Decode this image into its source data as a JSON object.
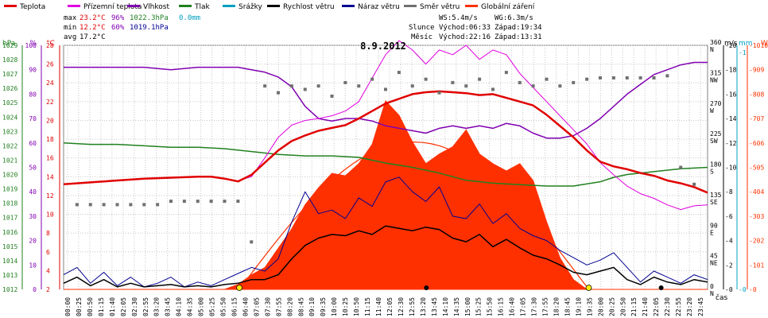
{
  "chart_data": {
    "type": "line",
    "title": "8.9.2012",
    "xlabel": "čas",
    "legend": [
      "Teplota",
      "Přízemní teplota",
      "Vlhkost",
      "Tlak",
      "Srážky",
      "Rychlost větru",
      "Náraz větru",
      "Směr větru",
      "Globální záření"
    ],
    "colors": {
      "temp": "#e00000",
      "ground": "#e000e0",
      "hum": "#8000b0",
      "press": "#208020",
      "rain": "#00a0c0",
      "wind": "#000000",
      "gust": "#000090",
      "dir": "#707070",
      "rad": "#ff3000"
    },
    "stats": {
      "max": {
        "label": "max",
        "temp": "23.2°C",
        "hum": "96%",
        "press": "1022.3hPa",
        "rain": "0.0mm"
      },
      "min": {
        "label": "min",
        "temp": "12.2°C",
        "hum": "60%",
        "press": "1019.1hPa"
      },
      "avg": {
        "label": "avg",
        "temp": "17.2°C"
      }
    },
    "wind_info": {
      "ws": "WS:5.4m/s",
      "wg": "WG:6.3m/s"
    },
    "sun": {
      "label": "Slunce",
      "rise": "Východ:06:33",
      "set": "Západ:19:34"
    },
    "moon": {
      "label": "Měsíc",
      "rise": "Východ:22:16",
      "set": "Západ:13:31"
    },
    "axes": {
      "hpa": {
        "title": "hPa",
        "ticks": [
          "1012",
          "1013",
          "1014",
          "1015",
          "1016",
          "1017",
          "1018",
          "1019",
          "1020",
          "1021",
          "1022",
          "1023",
          "1024",
          "1025",
          "1026",
          "1027",
          "1028",
          "1029"
        ]
      },
      "pct": {
        "title": "%",
        "ticks": [
          "0",
          "10",
          "20",
          "30",
          "40",
          "50",
          "60",
          "70",
          "80",
          "90",
          "100"
        ]
      },
      "degc": {
        "title": "°C",
        "ticks": [
          "2",
          "4",
          "6",
          "8",
          "10",
          "12",
          "14",
          "16",
          "18",
          "20",
          "22",
          "24",
          "26",
          "28"
        ]
      },
      "ms": {
        "title": "m/s",
        "ticks": [
          "0",
          "2",
          "4",
          "6",
          "8",
          "10",
          "12",
          "14",
          "16",
          "18",
          "20"
        ]
      },
      "dir": {
        "ticks": [
          "0 N",
          "45 NE",
          "90 E",
          "135 SE",
          "180 S",
          "225 SW",
          "270 W",
          "315 NW",
          "360 N"
        ]
      },
      "mm": {
        "title": "mm",
        "ticks": [
          "0",
          "1"
        ]
      },
      "w": {
        "title": "W",
        "ticks": [
          "0",
          "101",
          "202",
          "303",
          "404",
          "505",
          "606",
          "707",
          "808",
          "909",
          "1010"
        ]
      }
    },
    "x_ticks": [
      "00:00",
      "00:25",
      "00:50",
      "01:15",
      "01:40",
      "02:05",
      "02:30",
      "02:55",
      "03:20",
      "03:45",
      "04:10",
      "04:35",
      "05:00",
      "05:25",
      "05:50",
      "06:15",
      "06:40",
      "07:05",
      "07:30",
      "07:55",
      "08:20",
      "08:45",
      "09:10",
      "09:35",
      "10:00",
      "10:25",
      "10:50",
      "11:15",
      "11:40",
      "12:05",
      "12:30",
      "12:55",
      "13:20",
      "13:45",
      "14:10",
      "14:35",
      "15:00",
      "15:25",
      "15:50",
      "16:15",
      "16:40",
      "17:05",
      "17:30",
      "17:55",
      "18:20",
      "18:45",
      "19:10",
      "19:35",
      "20:00",
      "20:25",
      "20:50",
      "21:15",
      "21:40",
      "22:05",
      "22:30",
      "22:55",
      "23:20",
      "23:45"
    ],
    "series": [
      {
        "name": "Teplota",
        "unit": "°C",
        "x": [
          0,
          1,
          2,
          3,
          4,
          5,
          5.5,
          6,
          6.5,
          7,
          7.5,
          8,
          8.5,
          9,
          9.5,
          10,
          10.5,
          11,
          11.5,
          12,
          12.5,
          13,
          13.5,
          14,
          14.5,
          15,
          15.5,
          16,
          16.5,
          17,
          17.5,
          18,
          18.5,
          19,
          19.5,
          20,
          20.5,
          21,
          21.5,
          22,
          22.5,
          23,
          23.5,
          24
        ],
        "y": [
          13.2,
          13.4,
          13.6,
          13.8,
          13.9,
          14.0,
          14.0,
          13.8,
          13.5,
          14.2,
          15.5,
          16.8,
          17.8,
          18.4,
          18.9,
          19.2,
          19.5,
          20.2,
          21.0,
          21.8,
          22.3,
          22.8,
          23.0,
          23.1,
          23.0,
          22.9,
          22.7,
          22.8,
          22.4,
          22.0,
          21.6,
          20.6,
          19.4,
          18.2,
          16.8,
          15.6,
          15.1,
          14.8,
          14.4,
          14.1,
          13.6,
          13.3,
          12.9,
          12.3
        ]
      },
      {
        "name": "Přízemní teplota",
        "unit": "°C",
        "x": [
          6.4,
          7,
          7.5,
          8,
          8.5,
          9,
          9.5,
          10,
          10.5,
          11,
          11.5,
          12,
          12.5,
          13,
          13.5,
          14,
          14.5,
          15,
          15.5,
          16,
          16.5,
          17,
          17.5,
          18,
          18.5,
          19,
          19.5,
          20,
          20.5,
          21,
          21.5,
          22,
          22.5,
          23,
          23.5,
          24
        ],
        "y": [
          13.5,
          14.0,
          16.0,
          18.2,
          19.5,
          20.0,
          20.2,
          20.5,
          21.0,
          22.0,
          24.5,
          27.0,
          28.5,
          27.5,
          26.0,
          27.5,
          27.0,
          28.0,
          26.5,
          27.5,
          27.0,
          25.0,
          23.5,
          22.0,
          20.5,
          19.0,
          17.5,
          15.5,
          14.2,
          13.0,
          12.2,
          11.7,
          11.0,
          10.5,
          10.9,
          11.0
        ]
      },
      {
        "name": "Vlhkost",
        "unit": "%",
        "x": [
          0,
          1,
          2,
          3,
          4,
          5,
          6,
          6.5,
          7,
          7.5,
          8,
          8.5,
          9,
          9.5,
          10,
          10.5,
          11,
          11.5,
          12,
          12.5,
          13,
          13.5,
          14,
          14.5,
          15,
          15.5,
          16,
          16.5,
          17,
          17.5,
          18,
          18.5,
          19,
          19.5,
          20,
          20.5,
          21,
          21.5,
          22,
          22.5,
          23,
          23.5,
          24
        ],
        "y": [
          91,
          91,
          91,
          91,
          90,
          91,
          91,
          91,
          90,
          89,
          87,
          83,
          75,
          70,
          69,
          70,
          70,
          69,
          67,
          66,
          65,
          64,
          66,
          67,
          66,
          67,
          66,
          68,
          67,
          64,
          62,
          62,
          63,
          66,
          70,
          75,
          80,
          84,
          88,
          90,
          92,
          93,
          93
        ]
      },
      {
        "name": "Tlak",
        "unit": "hPa",
        "x": [
          0,
          1,
          2,
          3,
          4,
          5,
          6,
          7,
          8,
          9,
          10,
          11,
          12,
          13,
          14,
          15,
          16,
          17,
          18,
          19,
          20,
          20.5,
          21,
          22,
          23,
          24
        ],
        "y": [
          1022.2,
          1022.1,
          1022.1,
          1022.0,
          1021.9,
          1021.9,
          1021.8,
          1021.6,
          1021.4,
          1021.3,
          1021.3,
          1021.2,
          1020.8,
          1020.5,
          1020.1,
          1019.6,
          1019.4,
          1019.3,
          1019.2,
          1019.2,
          1019.5,
          1019.8,
          1020.0,
          1020.2,
          1020.4,
          1020.5
        ]
      },
      {
        "name": "Rychlost větru",
        "unit": "m/s",
        "x": [
          0,
          0.5,
          1,
          1.5,
          2,
          2.5,
          3,
          3.5,
          4,
          4.5,
          5,
          5.5,
          6,
          6.5,
          7,
          7.5,
          8,
          8.5,
          9,
          9.5,
          10,
          10.5,
          11,
          11.5,
          12,
          12.5,
          13,
          13.5,
          14,
          14.5,
          15,
          15.5,
          16,
          16.5,
          17,
          17.5,
          18,
          18.5,
          19,
          19.5,
          20,
          20.5,
          21,
          21.5,
          22,
          22.5,
          23,
          23.5,
          24
        ],
        "y": [
          0.5,
          1.0,
          0.3,
          0.8,
          0.2,
          0.5,
          0.2,
          0.3,
          0.4,
          0.2,
          0.3,
          0.2,
          0.4,
          0.5,
          0.8,
          0.8,
          1.2,
          2.5,
          3.6,
          4.2,
          4.5,
          4.4,
          4.8,
          4.5,
          5.2,
          5.0,
          4.8,
          5.1,
          4.9,
          4.2,
          3.9,
          4.5,
          3.5,
          4.1,
          3.4,
          2.8,
          2.5,
          2.0,
          1.4,
          1.2,
          1.5,
          1.8,
          0.8,
          0.4,
          1.0,
          0.6,
          0.4,
          0.8,
          0.6
        ]
      },
      {
        "name": "Náraz větru",
        "unit": "m/s",
        "x": [
          0,
          0.5,
          1,
          1.5,
          2,
          2.5,
          3,
          3.5,
          4,
          4.5,
          5,
          5.5,
          6,
          6.5,
          7,
          7.5,
          8,
          8.5,
          9,
          9.5,
          10,
          10.5,
          11,
          11.5,
          12,
          12.5,
          13,
          13.5,
          14,
          14.5,
          15,
          15.5,
          16,
          16.5,
          17,
          17.5,
          18,
          18.5,
          19,
          19.5,
          20,
          20.5,
          21,
          21.5,
          22,
          22.5,
          23,
          23.5,
          24
        ],
        "y": [
          1.2,
          1.8,
          0.5,
          1.4,
          0.3,
          1.0,
          0.2,
          0.5,
          1.0,
          0.2,
          0.6,
          0.3,
          0.8,
          1.3,
          1.8,
          1.5,
          2.5,
          5.5,
          8.0,
          6.2,
          6.5,
          5.8,
          7.5,
          6.8,
          8.8,
          9.2,
          8.0,
          7.2,
          8.4,
          6.0,
          5.8,
          7.0,
          5.4,
          6.2,
          5.0,
          4.4,
          4.0,
          3.2,
          2.6,
          2.0,
          2.4,
          3.0,
          1.8,
          0.6,
          1.5,
          1.0,
          0.5,
          1.2,
          0.8
        ]
      },
      {
        "name": "Směr větru",
        "unit": "°",
        "x": [
          0.5,
          1,
          1.5,
          2,
          2.5,
          3,
          3.5,
          4,
          4.5,
          5,
          5.5,
          6,
          6.5,
          7,
          7.5,
          8,
          8.5,
          9,
          9.5,
          10,
          10.5,
          11,
          11.5,
          12,
          12.5,
          13,
          13.5,
          14,
          14.5,
          15,
          15.5,
          16,
          16.5,
          17,
          17.5,
          18,
          18.5,
          19,
          19.5,
          20,
          20.5,
          21,
          21.5,
          22,
          22.5,
          23,
          23.5
        ],
        "y": [
          125,
          125,
          125,
          125,
          125,
          125,
          125,
          130,
          130,
          130,
          130,
          130,
          130,
          70,
          300,
          290,
          300,
          295,
          300,
          285,
          305,
          300,
          310,
          295,
          320,
          300,
          310,
          290,
          305,
          300,
          310,
          295,
          320,
          305,
          300,
          310,
          300,
          305,
          310,
          312,
          312,
          312,
          312,
          312,
          315,
          180,
          155
        ]
      },
      {
        "name": "Globální záření",
        "unit": "W",
        "x": [
          0,
          6,
          6.5,
          7,
          7.5,
          8,
          8.5,
          9,
          9.5,
          10,
          10.5,
          11,
          11.5,
          12,
          12.5,
          13,
          13.5,
          14,
          14.5,
          15,
          15.5,
          16,
          16.5,
          17,
          17.5,
          18,
          18.5,
          19,
          19.5,
          24
        ],
        "y": [
          0,
          0,
          20,
          60,
          90,
          170,
          250,
          350,
          420,
          480,
          470,
          520,
          600,
          780,
          720,
          610,
          520,
          560,
          590,
          660,
          560,
          520,
          490,
          520,
          450,
          280,
          130,
          40,
          0,
          0
        ]
      }
    ]
  }
}
